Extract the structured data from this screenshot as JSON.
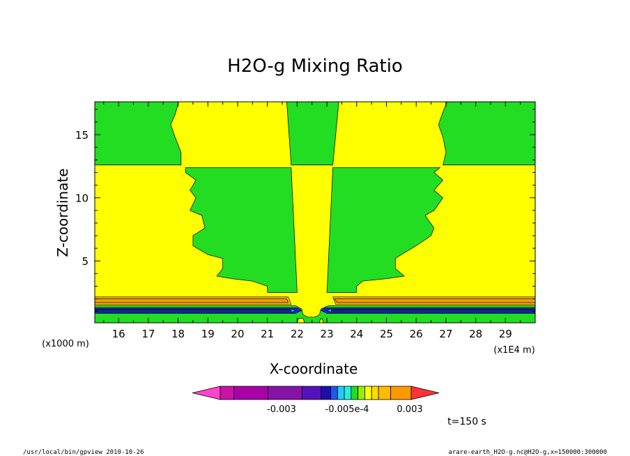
{
  "chart_data": {
    "type": "heatmap",
    "title": "H2O-g Mixing Ratio",
    "xlabel": "X-coordinate",
    "ylabel": "Z-coordinate",
    "x_unit": "(x1E4 m)",
    "y_unit": "(x1000 m)",
    "xlim": [
      15.2,
      30.0
    ],
    "ylim": [
      0.1,
      17.6
    ],
    "x_ticks": [
      16,
      17,
      18,
      19,
      20,
      21,
      22,
      23,
      24,
      25,
      26,
      27,
      28,
      29
    ],
    "x_tick_labels": [
      "16",
      "17",
      "18",
      "19",
      "20",
      "21",
      "22",
      "23",
      "24",
      "25",
      "26",
      "27",
      "28",
      "29"
    ],
    "y_ticks": [
      5,
      10,
      15
    ],
    "y_tick_labels": [
      "5",
      "10",
      "15"
    ],
    "colors": {
      "green": "#22dd22",
      "yellow": "#ffff00",
      "gold": "#ffcc00",
      "orange": "#ff9900",
      "deep_blue": "#1a22dd",
      "light_blue": "#22aaff"
    },
    "regions": [
      {
        "color": "green",
        "points": [
          [
            15.2,
            12.6
          ],
          [
            15.2,
            17.6
          ],
          [
            18.02,
            17.6
          ],
          [
            17.9,
            16.6
          ],
          [
            17.75,
            15.8
          ],
          [
            17.9,
            14.8
          ],
          [
            18.1,
            13.6
          ],
          [
            18.1,
            12.6
          ]
        ]
      },
      {
        "color": "green",
        "points": [
          [
            21.65,
            17.6
          ],
          [
            21.8,
            12.6
          ],
          [
            23.2,
            12.6
          ],
          [
            23.4,
            17.6
          ]
        ]
      },
      {
        "color": "green",
        "points": [
          [
            27.04,
            17.6
          ],
          [
            26.9,
            16.8
          ],
          [
            26.75,
            15.8
          ],
          [
            26.9,
            14.8
          ],
          [
            27.0,
            13.6
          ],
          [
            26.9,
            12.6
          ],
          [
            30.0,
            12.6
          ],
          [
            30.0,
            17.6
          ]
        ]
      },
      {
        "color": "green",
        "points": [
          [
            18.25,
            12.4
          ],
          [
            21.8,
            12.4
          ],
          [
            22.0,
            2.5
          ],
          [
            21.0,
            2.5
          ],
          [
            21.0,
            3.0
          ],
          [
            20.5,
            3.4
          ],
          [
            19.8,
            3.6
          ],
          [
            19.3,
            3.8
          ],
          [
            19.5,
            4.4
          ],
          [
            19.5,
            5.2
          ],
          [
            19.0,
            5.5
          ],
          [
            18.5,
            6.2
          ],
          [
            18.5,
            7.0
          ],
          [
            18.9,
            7.6
          ],
          [
            18.8,
            8.6
          ],
          [
            18.4,
            9.0
          ],
          [
            18.6,
            10.0
          ],
          [
            18.4,
            10.6
          ],
          [
            18.6,
            11.4
          ],
          [
            18.25,
            12.0
          ]
        ]
      },
      {
        "color": "green",
        "points": [
          [
            23.2,
            12.4
          ],
          [
            26.8,
            12.4
          ],
          [
            26.6,
            12.0
          ],
          [
            26.9,
            11.4
          ],
          [
            26.6,
            10.6
          ],
          [
            26.9,
            10.0
          ],
          [
            26.6,
            9.0
          ],
          [
            26.3,
            8.6
          ],
          [
            26.6,
            7.6
          ],
          [
            26.5,
            7.0
          ],
          [
            26.0,
            6.2
          ],
          [
            25.5,
            5.5
          ],
          [
            25.3,
            5.2
          ],
          [
            25.3,
            4.4
          ],
          [
            25.6,
            3.8
          ],
          [
            25.0,
            3.6
          ],
          [
            24.2,
            3.4
          ],
          [
            24.0,
            3.0
          ],
          [
            24.0,
            2.5
          ],
          [
            23.0,
            2.5
          ]
        ]
      },
      {
        "color": "gold",
        "points": [
          [
            15.2,
            1.55
          ],
          [
            15.2,
            2.15
          ],
          [
            21.7,
            2.15
          ],
          [
            21.8,
            1.55
          ]
        ]
      },
      {
        "color": "gold",
        "points": [
          [
            23.3,
            1.55
          ],
          [
            23.2,
            2.15
          ],
          [
            30.0,
            2.15
          ],
          [
            30.0,
            1.55
          ]
        ]
      },
      {
        "color": "orange",
        "points": [
          [
            15.2,
            1.7
          ],
          [
            15.2,
            2.0
          ],
          [
            21.65,
            2.0
          ],
          [
            21.7,
            1.7
          ]
        ]
      },
      {
        "color": "orange",
        "points": [
          [
            23.35,
            1.7
          ],
          [
            23.25,
            2.0
          ],
          [
            30.0,
            2.0
          ],
          [
            30.0,
            1.7
          ]
        ]
      },
      {
        "color": "green",
        "points": [
          [
            15.2,
            0.1
          ],
          [
            15.2,
            1.45
          ],
          [
            21.95,
            1.45
          ],
          [
            22.15,
            1.2
          ],
          [
            22.2,
            0.75
          ],
          [
            22.35,
            0.55
          ],
          [
            22.6,
            0.55
          ],
          [
            22.75,
            0.75
          ],
          [
            22.8,
            1.2
          ],
          [
            23.05,
            1.45
          ],
          [
            30.0,
            1.45
          ],
          [
            30.0,
            0.1
          ]
        ]
      },
      {
        "color": "deep_blue",
        "points": [
          [
            15.2,
            0.85
          ],
          [
            15.2,
            1.3
          ],
          [
            22.0,
            1.3
          ],
          [
            22.15,
            1.08
          ],
          [
            21.95,
            0.85
          ]
        ]
      },
      {
        "color": "deep_blue",
        "points": [
          [
            23.0,
            0.85
          ],
          [
            22.8,
            1.08
          ],
          [
            22.95,
            1.3
          ],
          [
            30.0,
            1.3
          ],
          [
            30.0,
            0.85
          ]
        ]
      },
      {
        "color": "light_blue",
        "points": [
          [
            15.2,
            0.97
          ],
          [
            15.2,
            1.18
          ],
          [
            21.85,
            1.18
          ],
          [
            21.95,
            1.07
          ],
          [
            21.85,
            0.97
          ]
        ]
      },
      {
        "color": "light_blue",
        "points": [
          [
            23.1,
            0.97
          ],
          [
            23.0,
            1.07
          ],
          [
            23.1,
            1.18
          ],
          [
            30.0,
            1.18
          ],
          [
            30.0,
            0.97
          ]
        ]
      },
      {
        "color": "deep_blue",
        "points": [
          [
            15.2,
            1.03
          ],
          [
            15.2,
            1.12
          ],
          [
            21.8,
            1.12
          ],
          [
            21.8,
            1.03
          ]
        ]
      },
      {
        "color": "deep_blue",
        "points": [
          [
            23.15,
            1.03
          ],
          [
            23.15,
            1.12
          ],
          [
            30.0,
            1.12
          ],
          [
            30.0,
            1.03
          ]
        ]
      },
      {
        "color": "yellow",
        "points": [
          [
            22.0,
            0.1
          ],
          [
            22.05,
            0.45
          ],
          [
            22.2,
            0.45
          ],
          [
            22.25,
            0.1
          ]
        ]
      },
      {
        "color": "yellow",
        "points": [
          [
            22.75,
            0.1
          ],
          [
            22.78,
            0.4
          ],
          [
            22.85,
            0.4
          ],
          [
            22.88,
            0.1
          ]
        ]
      }
    ]
  },
  "colorbar": {
    "colors": [
      "#ff44cc",
      "#cc11aa",
      "#aa00aa",
      "#8811aa",
      "#5511bb",
      "#1a11aa",
      "#2255ee",
      "#22ccff",
      "#22eedd",
      "#22dd22",
      "#99ee00",
      "#ffff00",
      "#ffdd00",
      "#ffbb00",
      "#ff9900",
      "#ff3333"
    ],
    "tick_labels": [
      "-0.003",
      "-0.005e-4",
      "0.003"
    ]
  },
  "annotations": {
    "time": "t=150 s",
    "footer_left": "/usr/local/bin/gpview  2010-10-26",
    "footer_right": "arare-earth_H2O-g.nc@H2O-g,x=150000:300000"
  }
}
